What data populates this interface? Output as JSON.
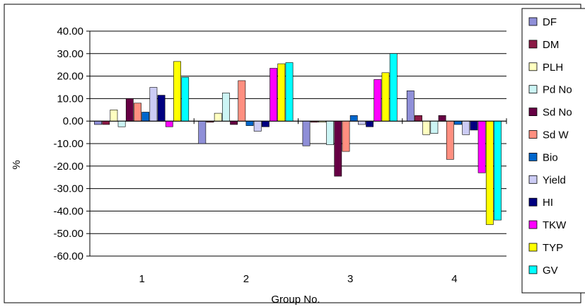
{
  "chart_data": {
    "type": "bar",
    "xlabel": "Group No.",
    "ylabel": "%",
    "ylim": [
      -60,
      40
    ],
    "yticks": [
      "40.00",
      "30.00",
      "20.00",
      "10.00",
      "0.00",
      "-10.00",
      "-20.00",
      "-30.00",
      "-40.00",
      "-50.00",
      "-60.00"
    ],
    "categories": [
      "1",
      "2",
      "3",
      "4"
    ],
    "grid": true,
    "legend_position": "right",
    "series": [
      {
        "name": "DF",
        "color": "#8f8fd8",
        "values": [
          -1.5,
          -10.0,
          -11.0,
          13.5
        ]
      },
      {
        "name": "DM",
        "color": "#8b1a46",
        "values": [
          -1.5,
          -0.5,
          -0.5,
          2.5
        ]
      },
      {
        "name": "PLH",
        "color": "#ffffc0",
        "values": [
          5.0,
          3.5,
          -0.5,
          -6.0
        ]
      },
      {
        "name": "Pd No",
        "color": "#ccf5f5",
        "values": [
          -2.5,
          12.5,
          -10.5,
          -5.5
        ]
      },
      {
        "name": "Sd No",
        "color": "#660044",
        "values": [
          10.0,
          -1.5,
          -24.5,
          2.5
        ]
      },
      {
        "name": "Sd W",
        "color": "#ff8f80",
        "values": [
          8.0,
          18.0,
          -13.5,
          -17.0
        ]
      },
      {
        "name": "Bio",
        "color": "#0066cc",
        "values": [
          4.0,
          -2.0,
          2.5,
          -1.5
        ]
      },
      {
        "name": "Yield",
        "color": "#ccccf5",
        "values": [
          15.0,
          -4.5,
          -1.5,
          -6.0
        ]
      },
      {
        "name": "HI",
        "color": "#000080",
        "values": [
          11.5,
          -2.5,
          -2.5,
          -4.0
        ]
      },
      {
        "name": "TKW",
        "color": "#ff00ff",
        "values": [
          -2.5,
          23.5,
          18.5,
          -23.0
        ]
      },
      {
        "name": "TYP",
        "color": "#ffff00",
        "values": [
          26.5,
          25.5,
          21.5,
          -46.0
        ]
      },
      {
        "name": "GV",
        "color": "#00ffff",
        "values": [
          19.5,
          26.0,
          30.0,
          -44.0
        ]
      }
    ]
  }
}
